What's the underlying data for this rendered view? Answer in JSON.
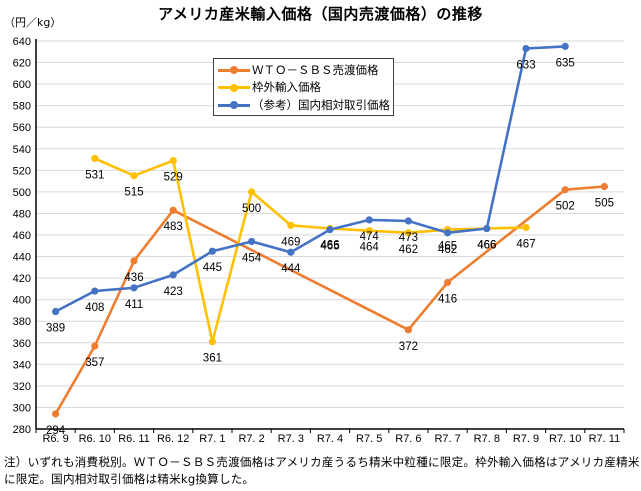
{
  "chart_data": {
    "type": "line",
    "title": "アメリカ産米輸入価格（国内売渡価格）の推移",
    "ylabel": "（円／kg）",
    "xlabel": "",
    "ylim": [
      280,
      640
    ],
    "ytick_step": 20,
    "grid": true,
    "legend_position": "top-center",
    "categories": [
      "R6.9",
      "R6.10",
      "R6.11",
      "R6.12",
      "R7.1",
      "R7.2",
      "R7.3",
      "R7.4",
      "R7.5",
      "R7.6",
      "R7.7",
      "R7.8",
      "R7.9",
      "R7.10",
      "R7.11"
    ],
    "series": [
      {
        "name": "ＷＴＯ－ＳＢＳ売渡価格",
        "color": "#ED7D31",
        "connect_gaps": true,
        "values": [
          294,
          357,
          436,
          483,
          null,
          null,
          null,
          null,
          null,
          372,
          416,
          null,
          null,
          502,
          505
        ]
      },
      {
        "name": "枠外輸入価格",
        "color": "#FFC000",
        "connect_gaps": true,
        "values": [
          null,
          531,
          515,
          529,
          361,
          500,
          469,
          466,
          464,
          462,
          465,
          466,
          467,
          null,
          null
        ]
      },
      {
        "name": "（参考）国内相対取引価格",
        "color": "#4472C4",
        "connect_gaps": true,
        "values": [
          389,
          408,
          411,
          423,
          445,
          454,
          444,
          465,
          474,
          473,
          462,
          466,
          633,
          635,
          null
        ]
      }
    ]
  },
  "note": "注）いずれも消費税別。ＷＴＯ－ＳＢＳ売渡価格はアメリカ産うるち精米中粒種に限定。枠外輸入価格はアメリカ産精米に限定。国内相対取引価格は精米kg換算した。"
}
